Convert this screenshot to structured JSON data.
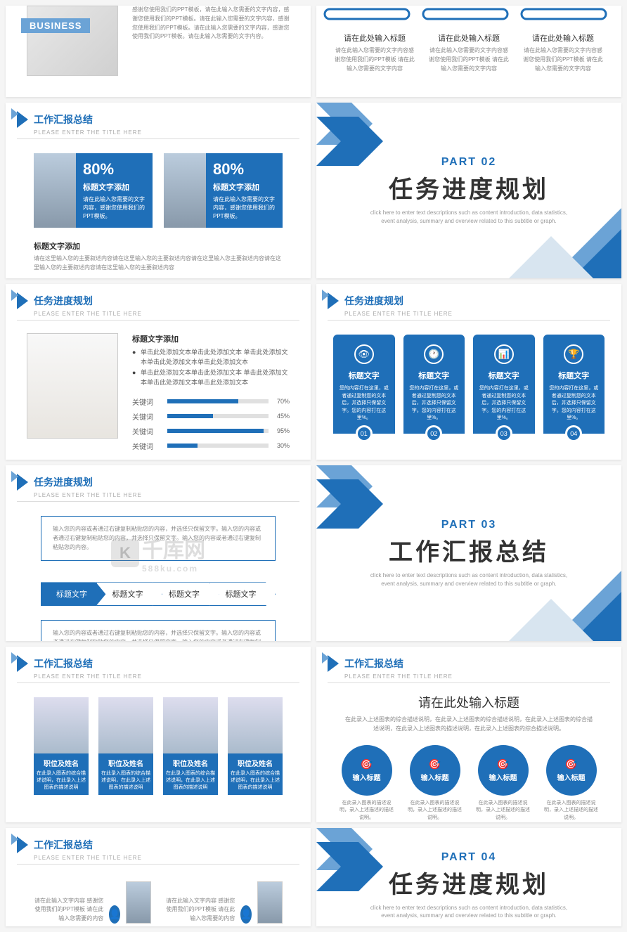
{
  "colors": {
    "primary": "#1f6fb8",
    "primaryLight": "#6ba3d6",
    "text": "#333",
    "muted": "#888",
    "track": "#e0e0e0",
    "bg": "#ffffff"
  },
  "watermark": {
    "text": "千库网",
    "sub": "588ku.com",
    "logoGlyph": "K"
  },
  "hdr_sub": "PLEASE ENTER THE TITLE HERE",
  "s1": {
    "badge": "BUSINESS",
    "para": "感谢您使用我们的PPT模板，请在此输入您需要的文字内容，感谢您使用我们的PPT模板。请在此输入您需要的文字内容，感谢您使用我们的PPT模板。请在此输入您需要的文字内容，感谢您使用我们的PPT模板。请在此输入您需要的文字内容。"
  },
  "s2": {
    "cols": [
      {
        "title": "请在此处输入标题",
        "desc": "请在此输入您需要的文字内容感谢您使用我们的PPT模板 请在此输入您需要的文字内容"
      },
      {
        "title": "请在此处输入标题",
        "desc": "请在此输入您需要的文字内容感谢您使用我们的PPT模板 请在此输入您需要的文字内容"
      },
      {
        "title": "请在此处输入标题",
        "desc": "请在此输入您需要的文字内容感谢您使用我们的PPT模板 请在此输入您需要的文字内容"
      }
    ]
  },
  "s3": {
    "title": "工作汇报总结",
    "cards": [
      {
        "pct": "80%",
        "t": "标题文字添加",
        "d": "请在此输入您需要的文字内容，感谢您使用我们的PPT模板。"
      },
      {
        "pct": "80%",
        "t": "标题文字添加",
        "d": "请在此输入您需要的文字内容，感谢您使用我们的PPT模板。"
      }
    ],
    "subT": "标题文字添加",
    "subD": "请在这里输入您的主要叙述内容请在这里输入您的主要叙述内容请在这里输入您主要叙述内容请在这里输入您的主要叙述内容请在这里输入您的主要叙述内容"
  },
  "s4": {
    "part": "PART 02",
    "title": "任务进度规划",
    "desc": "click here to enter text descriptions such as content introduction, data statistics, event analysis, summary and overview related to this subtitle or graph."
  },
  "s5": {
    "title": "任务进度规划",
    "subT": "标题文字添加",
    "bullets": [
      "单击此处添加文本单击此处添加文本 单击此处添加文本单击此处添加文本单击此处添加文本",
      "单击此处添加文本单击此处添加文本 单击此处添加文本单击此处添加文本单击此处添加文本"
    ],
    "bars": [
      {
        "label": "关键词",
        "pct": 70
      },
      {
        "label": "关键词",
        "pct": 45
      },
      {
        "label": "关键词",
        "pct": 95
      },
      {
        "label": "关键词",
        "pct": 30
      }
    ]
  },
  "s6": {
    "title": "任务进度规划",
    "cards": [
      {
        "icon": "👁",
        "t": "标题文字",
        "d": "您的内容打在这里，或者通过复制您的文本后，并选择只保留文字。您的内容打在这里%。",
        "num": "01"
      },
      {
        "icon": "🕐",
        "t": "标题文字",
        "d": "您的内容打在这里，或者通过复制您的文本后，并选择只保留文字。您的内容打在这里%。",
        "num": "02"
      },
      {
        "icon": "📊",
        "t": "标题文字",
        "d": "您的内容打在这里，或者通过复制您的文本后，并选择只保留文字。您的内容打在这里%。",
        "num": "03"
      },
      {
        "icon": "🏆",
        "t": "标题文字",
        "d": "您的内容打在这里，或者通过复制您的文本后，并选择只保留文字。您的内容打在这里%。",
        "num": "04"
      }
    ]
  },
  "s7": {
    "title": "任务进度规划",
    "top": "输入您的内容或者通过右键复制粘贴您的内容，并选择只保留文字。输入您的内容或者通过右键复制粘贴您的内容，并选择只保留文字。输入您的内容或者通过右键复制粘贴您的内容。",
    "chevs": [
      "标题文字",
      "标题文字",
      "标题文字",
      "标题文字"
    ],
    "bot": "输入您的内容或者通过右键复制粘贴您的内容，并选择只保留文字。输入您的内容或者通过右键复制粘贴您的内容，并选择只保留文字。输入您的内容或者通过右键复制粘贴您的内容，并选择只保留文字。"
  },
  "s8": {
    "part": "PART 03",
    "title": "工作汇报总结",
    "desc": "click here to enter text descriptions such as content introduction, data statistics, event analysis, summary and overview related to this subtitle or graph."
  },
  "s9": {
    "title": "工作汇报总结",
    "team": [
      {
        "name": "职位及姓名",
        "d": "在此录入图表的综合描述说明，在此录入上述图表的描述说明"
      },
      {
        "name": "职位及姓名",
        "d": "在此录入图表的综合描述说明，在此录入上述图表的描述说明"
      },
      {
        "name": "职位及姓名",
        "d": "在此录入图表的综合描述说明，在此录入上述图表的描述说明"
      },
      {
        "name": "职位及姓名",
        "d": "在此录入图表的综合描述说明，在此录入上述图表的描述说明"
      }
    ]
  },
  "s10": {
    "title": "工作汇报总结",
    "heading": "请在此处输入标题",
    "desc": "在此录入上述图表的综合描述说明，在此录入上述图表的综合描述说明，在此录入上述图表的综合描述说明，在此录入上述图表的描述说明，在此录入上述图表的综合描述说明。",
    "circles": [
      {
        "icon": "🎯",
        "t": "输入标题",
        "d": "在此录入图表的描述说明，录入上述描述的描述说明。"
      },
      {
        "icon": "🎯",
        "t": "输入标题",
        "d": "在此录入图表的描述说明，录入上述描述的描述说明。"
      },
      {
        "icon": "🎯",
        "t": "输入标题",
        "d": "在此录入图表的描述说明，录入上述描述的描述说明。"
      },
      {
        "icon": "🎯",
        "t": "输入标题",
        "d": "在此录入图表的描述说明，录入上述描述的描述说明。"
      }
    ]
  },
  "s11": {
    "title": "工作汇报总结",
    "items": [
      {
        "t": "请在此输入文字内容 感谢您使用我们的PPT模板 请在此输入您需要的内容",
        "icon": "👤"
      },
      {
        "t": "请在此输入文字内容 感谢您使用我们的PPT模板 请在此输入您需要的内容",
        "icon": "👤"
      }
    ]
  },
  "s12": {
    "part": "PART 04",
    "title": "任务进度规划",
    "desc": "click here to enter text descriptions such as content introduction, data statistics, event analysis, summary and overview related to this subtitle or graph."
  }
}
